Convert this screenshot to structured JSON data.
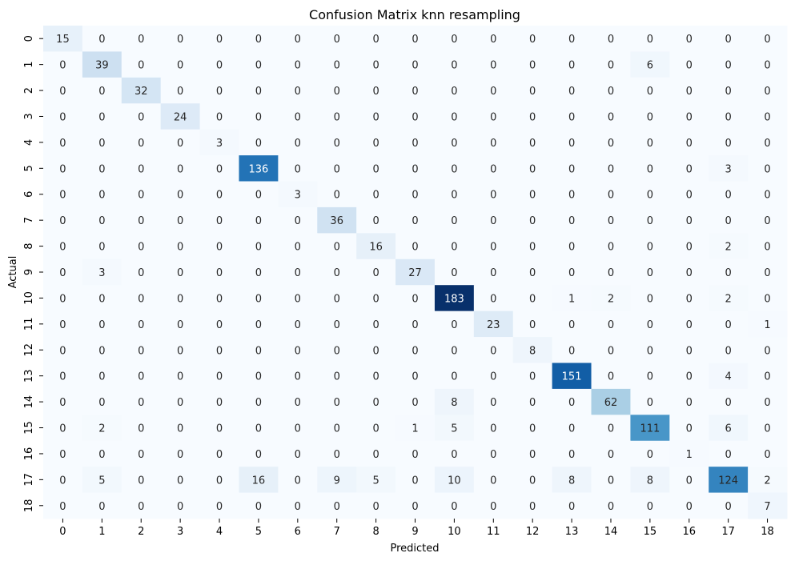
{
  "chart_data": {
    "type": "heatmap",
    "title": "Confusion Matrix knn resampling",
    "xlabel": "Predicted",
    "ylabel": "Actual",
    "x_categories": [
      "0",
      "1",
      "2",
      "3",
      "4",
      "5",
      "6",
      "7",
      "8",
      "9",
      "10",
      "11",
      "12",
      "13",
      "14",
      "15",
      "16",
      "17",
      "18"
    ],
    "y_categories": [
      "0",
      "1",
      "2",
      "3",
      "4",
      "5",
      "6",
      "7",
      "8",
      "9",
      "10",
      "11",
      "12",
      "13",
      "14",
      "15",
      "16",
      "17",
      "18"
    ],
    "colormap": "Blues",
    "vmin": 0,
    "vmax": 183,
    "colorbar": false,
    "matrix": [
      [
        15,
        0,
        0,
        0,
        0,
        0,
        0,
        0,
        0,
        0,
        0,
        0,
        0,
        0,
        0,
        0,
        0,
        0,
        0
      ],
      [
        0,
        39,
        0,
        0,
        0,
        0,
        0,
        0,
        0,
        0,
        0,
        0,
        0,
        0,
        0,
        6,
        0,
        0,
        0
      ],
      [
        0,
        0,
        32,
        0,
        0,
        0,
        0,
        0,
        0,
        0,
        0,
        0,
        0,
        0,
        0,
        0,
        0,
        0,
        0
      ],
      [
        0,
        0,
        0,
        24,
        0,
        0,
        0,
        0,
        0,
        0,
        0,
        0,
        0,
        0,
        0,
        0,
        0,
        0,
        0
      ],
      [
        0,
        0,
        0,
        0,
        3,
        0,
        0,
        0,
        0,
        0,
        0,
        0,
        0,
        0,
        0,
        0,
        0,
        0,
        0
      ],
      [
        0,
        0,
        0,
        0,
        0,
        136,
        0,
        0,
        0,
        0,
        0,
        0,
        0,
        0,
        0,
        0,
        0,
        3,
        0
      ],
      [
        0,
        0,
        0,
        0,
        0,
        0,
        3,
        0,
        0,
        0,
        0,
        0,
        0,
        0,
        0,
        0,
        0,
        0,
        0
      ],
      [
        0,
        0,
        0,
        0,
        0,
        0,
        0,
        36,
        0,
        0,
        0,
        0,
        0,
        0,
        0,
        0,
        0,
        0,
        0
      ],
      [
        0,
        0,
        0,
        0,
        0,
        0,
        0,
        0,
        16,
        0,
        0,
        0,
        0,
        0,
        0,
        0,
        0,
        2,
        0
      ],
      [
        0,
        3,
        0,
        0,
        0,
        0,
        0,
        0,
        0,
        27,
        0,
        0,
        0,
        0,
        0,
        0,
        0,
        0,
        0
      ],
      [
        0,
        0,
        0,
        0,
        0,
        0,
        0,
        0,
        0,
        0,
        183,
        0,
        0,
        1,
        2,
        0,
        0,
        2,
        0
      ],
      [
        0,
        0,
        0,
        0,
        0,
        0,
        0,
        0,
        0,
        0,
        0,
        23,
        0,
        0,
        0,
        0,
        0,
        0,
        1
      ],
      [
        0,
        0,
        0,
        0,
        0,
        0,
        0,
        0,
        0,
        0,
        0,
        0,
        8,
        0,
        0,
        0,
        0,
        0,
        0
      ],
      [
        0,
        0,
        0,
        0,
        0,
        0,
        0,
        0,
        0,
        0,
        0,
        0,
        0,
        151,
        0,
        0,
        0,
        4,
        0
      ],
      [
        0,
        0,
        0,
        0,
        0,
        0,
        0,
        0,
        0,
        0,
        8,
        0,
        0,
        0,
        62,
        0,
        0,
        0,
        0
      ],
      [
        0,
        2,
        0,
        0,
        0,
        0,
        0,
        0,
        0,
        1,
        5,
        0,
        0,
        0,
        0,
        111,
        0,
        6,
        0
      ],
      [
        0,
        0,
        0,
        0,
        0,
        0,
        0,
        0,
        0,
        0,
        0,
        0,
        0,
        0,
        0,
        0,
        1,
        0,
        0
      ],
      [
        0,
        5,
        0,
        0,
        0,
        16,
        0,
        9,
        5,
        0,
        10,
        0,
        0,
        8,
        0,
        8,
        0,
        124,
        2
      ],
      [
        0,
        0,
        0,
        0,
        0,
        0,
        0,
        0,
        0,
        0,
        0,
        0,
        0,
        0,
        0,
        0,
        0,
        0,
        7
      ]
    ]
  }
}
